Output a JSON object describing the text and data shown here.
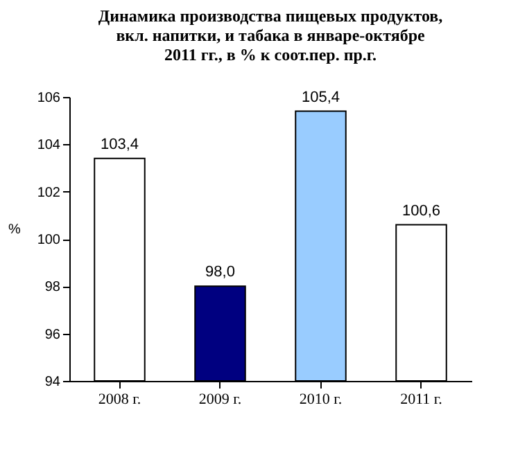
{
  "chart_data": {
    "type": "bar",
    "title": "Динамика производства пищевых продуктов, вкл. напитки, и табака в январе-октябре 2011 гг., в % к соот.пер. пр.г.",
    "ylabel": "%",
    "categories": [
      "2008 г.",
      "2009 г.",
      "2010 г.",
      "2011 г."
    ],
    "values": [
      103.4,
      98.0,
      105.4,
      100.6
    ],
    "colors": [
      "#ffffff",
      "#000080",
      "#99ccff",
      "#ffffff"
    ],
    "value_labels": [
      "103,4",
      "98,0",
      "105,4",
      "100,6"
    ],
    "ylim": [
      94,
      106
    ],
    "yticks": [
      94,
      96,
      98,
      100,
      102,
      104,
      106
    ],
    "grid": false
  }
}
